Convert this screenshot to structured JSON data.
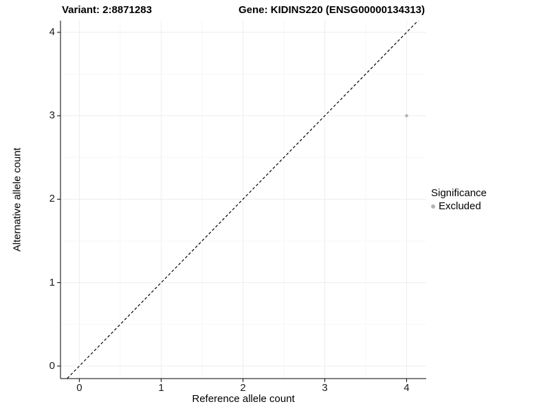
{
  "chart_data": {
    "type": "scatter",
    "titles": [
      "Variant: 2:8871283",
      "Gene: KIDINS220 (ENSG00000134313)"
    ],
    "xlabel": "Reference allele count",
    "ylabel": "Alternative allele count",
    "xlim": [
      -0.23,
      4.24
    ],
    "ylim": [
      -0.15,
      4.14
    ],
    "xticks": [
      0,
      1,
      2,
      3,
      4
    ],
    "yticks": [
      0,
      1,
      2,
      3,
      4
    ],
    "minor_xticks": [
      0.5,
      1.5,
      2.5,
      3.5
    ],
    "minor_yticks": [
      0.5,
      1.5,
      2.5,
      3.5
    ],
    "grid": true,
    "identity_line": {
      "style": "dashed",
      "color": "#000000",
      "from": -0.23,
      "to": 4.24
    },
    "series": [
      {
        "name": "Excluded",
        "color": "#b3b3b3",
        "points": [
          {
            "x": 4,
            "y": 3
          }
        ]
      }
    ],
    "legend": {
      "title": "Significance",
      "position": "right",
      "entries": [
        {
          "label": "Excluded",
          "color": "#b3b3b3",
          "marker": "circle"
        }
      ]
    }
  },
  "colors": {
    "grid_major": "#ededed",
    "grid_minor": "#f7f7f7",
    "axis": "#000000",
    "text": "#000000"
  }
}
